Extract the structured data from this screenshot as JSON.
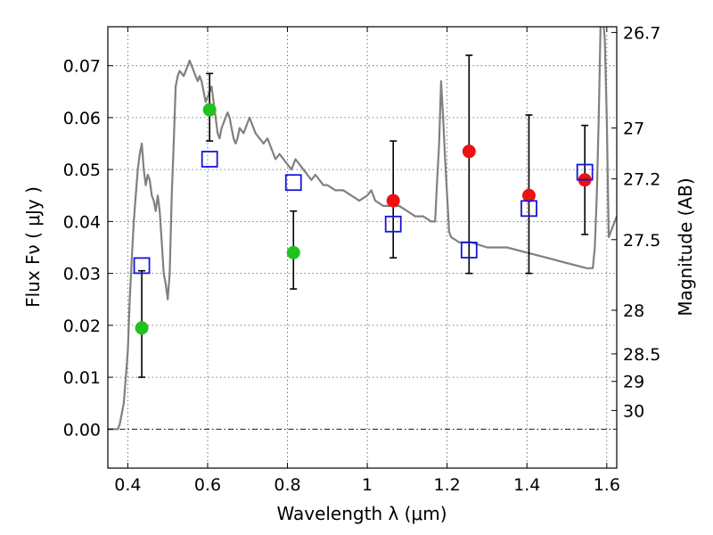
{
  "chart_data": {
    "type": "scatter",
    "xlabel": "Wavelength  λ (μm)",
    "ylabel": "Flux  Fν  ( μJy )",
    "y2label": "Magnitude (AB)",
    "xlim": [
      0.35,
      1.625
    ],
    "ylim": [
      -0.0075,
      0.0775
    ],
    "grid": true,
    "x_ticks": [
      {
        "value": 0.4,
        "label": "0.4"
      },
      {
        "value": 0.6,
        "label": "0.6"
      },
      {
        "value": 0.8,
        "label": "0.8"
      },
      {
        "value": 1.0,
        "label": "1"
      },
      {
        "value": 1.2,
        "label": "1.2"
      },
      {
        "value": 1.4,
        "label": "1.4"
      },
      {
        "value": 1.6,
        "label": "1.6"
      }
    ],
    "y_ticks": [
      {
        "value": 0.0,
        "label": "0.00"
      },
      {
        "value": 0.01,
        "label": "0.01"
      },
      {
        "value": 0.02,
        "label": "0.02"
      },
      {
        "value": 0.03,
        "label": "0.03"
      },
      {
        "value": 0.04,
        "label": "0.04"
      },
      {
        "value": 0.05,
        "label": "0.05"
      },
      {
        "value": 0.06,
        "label": "0.06"
      },
      {
        "value": 0.07,
        "label": "0.07"
      }
    ],
    "y2_ticks": [
      {
        "flux": 0.0764,
        "label": "26.7"
      },
      {
        "flux": 0.058,
        "label": "27"
      },
      {
        "flux": 0.0482,
        "label": "27.2"
      },
      {
        "flux": 0.0365,
        "label": "27.5"
      },
      {
        "flux": 0.0229,
        "label": "28"
      },
      {
        "flux": 0.0145,
        "label": "28.5"
      },
      {
        "flux": 0.0092,
        "label": "29"
      },
      {
        "flux": 0.0036,
        "label": "30"
      }
    ],
    "colors": {
      "model": "#808080",
      "green": "#1fc21f",
      "red": "#ee1111",
      "square": "#1515dd",
      "errorbar": "#000000",
      "grid": "#555555"
    },
    "series": [
      {
        "name": "model spectrum",
        "kind": "line",
        "x": [
          0.35,
          0.375,
          0.38,
          0.39,
          0.4,
          0.405,
          0.41,
          0.415,
          0.42,
          0.425,
          0.43,
          0.435,
          0.44,
          0.445,
          0.45,
          0.455,
          0.46,
          0.465,
          0.47,
          0.475,
          0.48,
          0.485,
          0.49,
          0.495,
          0.5,
          0.505,
          0.51,
          0.515,
          0.52,
          0.525,
          0.53,
          0.54,
          0.55,
          0.555,
          0.56,
          0.565,
          0.57,
          0.575,
          0.58,
          0.585,
          0.59,
          0.595,
          0.6,
          0.605,
          0.61,
          0.615,
          0.62,
          0.625,
          0.63,
          0.635,
          0.64,
          0.645,
          0.65,
          0.655,
          0.66,
          0.665,
          0.67,
          0.675,
          0.68,
          0.69,
          0.7,
          0.705,
          0.71,
          0.72,
          0.73,
          0.74,
          0.75,
          0.76,
          0.77,
          0.78,
          0.79,
          0.8,
          0.81,
          0.82,
          0.83,
          0.84,
          0.85,
          0.86,
          0.87,
          0.88,
          0.89,
          0.9,
          0.92,
          0.94,
          0.96,
          0.98,
          1.0,
          1.01,
          1.02,
          1.04,
          1.06,
          1.08,
          1.1,
          1.12,
          1.14,
          1.16,
          1.17,
          1.175,
          1.18,
          1.185,
          1.19,
          1.195,
          1.2,
          1.205,
          1.21,
          1.23,
          1.26,
          1.3,
          1.35,
          1.4,
          1.45,
          1.5,
          1.55,
          1.565,
          1.57,
          1.575,
          1.58,
          1.585,
          1.59,
          1.595,
          1.6,
          1.605,
          1.61,
          1.625
        ],
        "y": [
          0.0,
          0.0,
          0.001,
          0.005,
          0.015,
          0.025,
          0.033,
          0.04,
          0.045,
          0.05,
          0.053,
          0.055,
          0.05,
          0.047,
          0.049,
          0.048,
          0.045,
          0.044,
          0.042,
          0.045,
          0.042,
          0.036,
          0.03,
          0.028,
          0.025,
          0.03,
          0.045,
          0.055,
          0.066,
          0.068,
          0.069,
          0.068,
          0.07,
          0.071,
          0.07,
          0.069,
          0.068,
          0.067,
          0.068,
          0.067,
          0.065,
          0.063,
          0.064,
          0.065,
          0.066,
          0.063,
          0.06,
          0.057,
          0.056,
          0.058,
          0.059,
          0.06,
          0.061,
          0.06,
          0.058,
          0.056,
          0.055,
          0.056,
          0.058,
          0.057,
          0.059,
          0.06,
          0.059,
          0.057,
          0.056,
          0.055,
          0.056,
          0.054,
          0.052,
          0.053,
          0.052,
          0.051,
          0.05,
          0.052,
          0.051,
          0.05,
          0.049,
          0.048,
          0.049,
          0.048,
          0.047,
          0.047,
          0.046,
          0.046,
          0.045,
          0.044,
          0.045,
          0.046,
          0.044,
          0.043,
          0.043,
          0.043,
          0.042,
          0.041,
          0.041,
          0.04,
          0.04,
          0.048,
          0.055,
          0.067,
          0.06,
          0.052,
          0.045,
          0.038,
          0.037,
          0.036,
          0.036,
          0.035,
          0.035,
          0.034,
          0.033,
          0.032,
          0.031,
          0.031,
          0.035,
          0.045,
          0.06,
          0.08,
          0.08,
          0.075,
          0.06,
          0.037,
          0.038,
          0.041
        ]
      },
      {
        "name": "green points",
        "kind": "marker",
        "marker": "circle",
        "points": [
          {
            "x": 0.435,
            "y": 0.0195,
            "err_lo": 0.01,
            "err_hi": 0.0305
          },
          {
            "x": 0.605,
            "y": 0.0615,
            "err_lo": 0.0555,
            "err_hi": 0.0685
          },
          {
            "x": 0.815,
            "y": 0.034,
            "err_lo": 0.027,
            "err_hi": 0.042
          }
        ]
      },
      {
        "name": "red points",
        "kind": "marker",
        "marker": "circle",
        "points": [
          {
            "x": 1.065,
            "y": 0.044,
            "err_lo": 0.033,
            "err_hi": 0.0555
          },
          {
            "x": 1.255,
            "y": 0.0535,
            "err_lo": 0.03,
            "err_hi": 0.072
          },
          {
            "x": 1.405,
            "y": 0.045,
            "err_lo": 0.03,
            "err_hi": 0.0605
          },
          {
            "x": 1.545,
            "y": 0.048,
            "err_lo": 0.0375,
            "err_hi": 0.0585
          }
        ]
      },
      {
        "name": "model band fluxes",
        "kind": "marker",
        "marker": "square",
        "points": [
          {
            "x": 0.435,
            "y": 0.0315
          },
          {
            "x": 0.605,
            "y": 0.052
          },
          {
            "x": 0.815,
            "y": 0.0475
          },
          {
            "x": 1.065,
            "y": 0.0395
          },
          {
            "x": 1.255,
            "y": 0.0345
          },
          {
            "x": 1.405,
            "y": 0.0425
          },
          {
            "x": 1.545,
            "y": 0.0495
          }
        ]
      }
    ]
  }
}
